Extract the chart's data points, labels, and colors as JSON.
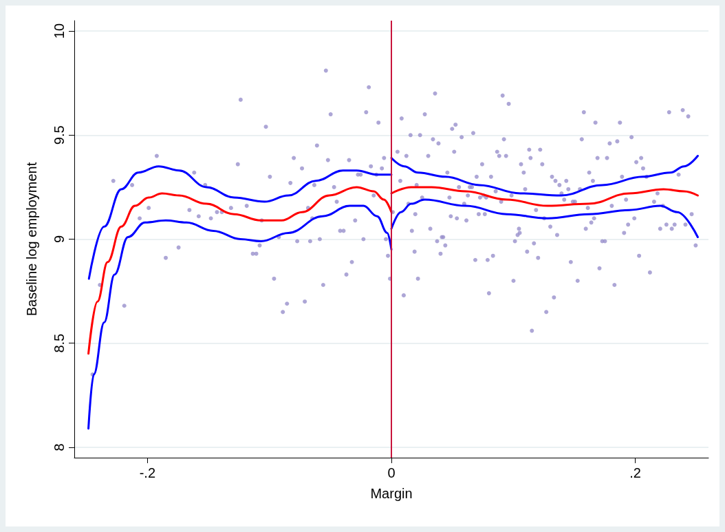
{
  "chart_data": {
    "type": "scatter",
    "xlabel": "Margin",
    "ylabel": "Baseline log employment",
    "xlim": [
      -0.26,
      0.26
    ],
    "ylim": [
      7.95,
      10.05
    ],
    "xticks": [
      {
        "value": -0.2,
        "label": "-.2"
      },
      0,
      {
        "value": 0.2,
        "label": ".2"
      }
    ],
    "yticks": [
      8,
      8.5,
      9,
      9.5,
      10
    ],
    "grid": "y",
    "ref_lines": [
      {
        "axis": "x",
        "value": 0,
        "color": "#c8143c"
      }
    ],
    "series": [
      {
        "marker": "circle",
        "color": "#9890cc",
        "x": [
          -0.1924,
          -0.228,
          -0.2126,
          -0.1617,
          -0.1527,
          -0.199,
          -0.2064,
          -0.1656,
          -0.158,
          -0.148,
          -0.143,
          -0.139,
          -0.1315,
          -0.185,
          -0.1745,
          -0.239,
          -0.219,
          -0.245,
          -0.0537,
          -0.0185,
          -0.1236,
          -0.0498,
          -0.0207,
          -0.0106,
          -0.1029,
          -0.061,
          -0.1259,
          -0.08,
          -0.052,
          -0.0347,
          -0.006,
          -0.0733,
          -0.0168,
          -0.0078,
          -0.0996,
          -0.0274,
          -0.0252,
          -0.0123,
          -0.0828,
          -0.0632,
          -0.047,
          -0.0145,
          -0.1186,
          -0.0448,
          -0.0683,
          -0.1063,
          -0.0649,
          -0.0297,
          -0.042,
          -0.0392,
          -0.0923,
          -0.108,
          -0.0772,
          -0.0666,
          -0.0587,
          -0.0229,
          -0.0045,
          -0.1136,
          -0.1108,
          -0.0028,
          -0.0324,
          -0.0962,
          -0.0369,
          -0.0011,
          -0.0559,
          -0.0856,
          -0.071,
          -0.089,
          0.0358,
          0.0912,
          0.0962,
          0.0084,
          0.0274,
          0.0526,
          0.0498,
          0.0157,
          0.0235,
          0.0576,
          0.0671,
          0.0923,
          0.0341,
          0.0386,
          0.005,
          0.0123,
          0.0302,
          0.0515,
          0.0867,
          0.0884,
          0.094,
          0.113,
          0.122,
          0.1141,
          0.0744,
          0.1063,
          0.1237,
          0.1085,
          0.0459,
          0.0699,
          0.0817,
          0.0073,
          0.0207,
          0.0554,
          0.0643,
          0.066,
          0.1097,
          0.0855,
          0.0627,
          0.0252,
          0.0476,
          0.0727,
          0.0755,
          0.0777,
          0.0985,
          0.09,
          0.0597,
          0.014,
          0.0011,
          0.1186,
          0.0196,
          0.0716,
          0.0766,
          0.0487,
          0.0537,
          0.0615,
          0.1253,
          0.0168,
          0.0319,
          0.1046,
          0.1035,
          0.1052,
          0.0414,
          0.0425,
          0.1013,
          0.0375,
          0.0442,
          0.1169,
          0.019,
          0.0403,
          0.1113,
          0.1203,
          0.0688,
          0.0789,
          0.0833,
          0.0218,
          0.1001,
          0.0101,
          0.08,
          0.127,
          0.1152,
          0.1578,
          0.2277,
          0.2389,
          0.2434,
          0.1673,
          0.1874,
          0.1561,
          0.1969,
          0.179,
          0.1852,
          0.169,
          0.1768,
          0.2008,
          0.2048,
          0.2064,
          0.1622,
          0.1891,
          0.2092,
          0.1317,
          0.1345,
          0.1378,
          0.1434,
          0.1652,
          0.2355,
          0.1451,
          0.1546,
          0.1395,
          0.2182,
          0.1417,
          0.1488,
          0.1505,
          0.1924,
          0.2154,
          0.1611,
          0.1807,
          0.2227,
          0.2462,
          0.1662,
          0.1992,
          0.1639,
          0.1941,
          0.2411,
          0.2255,
          0.2322,
          0.2204,
          0.2299,
          0.1594,
          0.1303,
          0.1359,
          0.1908,
          0.1729,
          0.1751,
          0.2495,
          0.2031,
          0.1471,
          0.1706,
          0.212,
          0.1527,
          0.1829,
          0.1333
        ],
        "values": [
          9.4,
          9.28,
          9.26,
          9.32,
          9.26,
          9.15,
          9.1,
          9.14,
          9.11,
          9.1,
          9.13,
          9.13,
          9.15,
          8.91,
          8.96,
          8.78,
          8.68,
          8.35,
          9.81,
          9.73,
          9.67,
          9.6,
          9.61,
          9.56,
          9.54,
          9.45,
          9.36,
          9.39,
          9.38,
          9.38,
          9.39,
          9.34,
          9.35,
          9.34,
          9.3,
          9.31,
          9.31,
          9.31,
          9.27,
          9.26,
          9.25,
          9.21,
          9.16,
          9.18,
          9.15,
          9.09,
          9.1,
          9.09,
          9.04,
          9.04,
          9.01,
          8.97,
          8.99,
          8.99,
          9,
          9,
          9,
          8.93,
          8.93,
          8.92,
          8.89,
          8.81,
          8.83,
          8.81,
          8.78,
          8.69,
          8.7,
          8.65,
          9.7,
          9.69,
          9.65,
          9.58,
          9.6,
          9.55,
          9.53,
          9.5,
          9.5,
          9.49,
          9.51,
          9.48,
          9.48,
          9.46,
          9.42,
          9.4,
          9.4,
          9.42,
          9.42,
          9.4,
          9.4,
          9.43,
          9.43,
          9.39,
          9.36,
          9.36,
          9.36,
          9.32,
          9.32,
          9.3,
          9.3,
          9.28,
          9.26,
          9.25,
          9.25,
          9.25,
          9.24,
          9.23,
          9.21,
          9.2,
          9.2,
          9.2,
          9.21,
          9.2,
          9.21,
          9.18,
          9.17,
          9.17,
          9.13,
          9.14,
          9.12,
          9.12,
          9.12,
          9.11,
          9.1,
          9.09,
          9.1,
          9.04,
          9.05,
          9.05,
          9.02,
          9.03,
          9.01,
          9.01,
          8.99,
          8.99,
          8.97,
          8.98,
          8.94,
          8.93,
          8.94,
          8.91,
          8.9,
          8.9,
          8.92,
          8.81,
          8.8,
          8.73,
          8.74,
          8.65,
          8.56,
          9.61,
          9.61,
          9.62,
          9.59,
          9.56,
          9.56,
          9.48,
          9.49,
          9.46,
          9.47,
          9.39,
          9.39,
          9.37,
          9.39,
          9.34,
          9.32,
          9.3,
          9.3,
          9.3,
          9.28,
          9.26,
          9.28,
          9.28,
          9.31,
          9.24,
          9.24,
          9.22,
          9.22,
          9.19,
          9.18,
          9.18,
          9.19,
          9.18,
          9.15,
          9.16,
          9.16,
          9.12,
          9.1,
          9.1,
          9.08,
          9.07,
          9.07,
          9.07,
          9.07,
          9.05,
          9.05,
          9.05,
          9.06,
          9.02,
          9.03,
          8.99,
          8.99,
          8.97,
          8.92,
          8.89,
          8.86,
          8.84,
          8.8,
          8.78,
          8.72
        ]
      },
      {
        "type": "line",
        "marker": "none",
        "color": "#ff0000",
        "x": [
          -0.2484,
          -0.241,
          -0.2327,
          -0.2215,
          -0.2103,
          -0.199,
          -0.188,
          -0.174,
          -0.1516,
          -0.129,
          -0.107,
          -0.09,
          -0.0733,
          -0.051,
          -0.0285,
          -0.0145,
          -0.0062,
          0
        ],
        "values": [
          8.45,
          8.7,
          8.89,
          9.06,
          9.16,
          9.2,
          9.22,
          9.21,
          9.17,
          9.12,
          9.09,
          9.09,
          9.13,
          9.21,
          9.25,
          9.23,
          9.19,
          9.13
        ]
      },
      {
        "type": "line",
        "marker": "none",
        "color": "#0000ff",
        "x": [
          -0.248,
          -0.2355,
          -0.2215,
          -0.2075,
          -0.1908,
          -0.174,
          -0.1516,
          -0.129,
          -0.104,
          -0.0845,
          -0.062,
          -0.0397,
          -0.0285,
          -0.0117,
          0
        ],
        "values": [
          8.81,
          9.06,
          9.24,
          9.32,
          9.35,
          9.33,
          9.25,
          9.2,
          9.18,
          9.21,
          9.28,
          9.33,
          9.33,
          9.31,
          9.31
        ]
      },
      {
        "type": "line",
        "marker": "none",
        "color": "#0000ff",
        "x": [
          -0.2484,
          -0.244,
          -0.2355,
          -0.227,
          -0.216,
          -0.202,
          -0.185,
          -0.168,
          -0.146,
          -0.1236,
          -0.107,
          -0.0845,
          -0.0565,
          -0.0341,
          -0.0229,
          -0.0117,
          -0.0034,
          0
        ],
        "values": [
          8.09,
          8.35,
          8.6,
          8.83,
          9.01,
          9.08,
          9.09,
          9.08,
          9.04,
          9,
          8.99,
          9.03,
          9.11,
          9.16,
          9.16,
          9.11,
          9.03,
          8.95
        ]
      },
      {
        "type": "line",
        "marker": "none",
        "color": "#ff0000",
        "x": [
          0,
          0.0162,
          0.033,
          0.061,
          0.0945,
          0.128,
          0.1617,
          0.1952,
          0.2232,
          0.24,
          0.2512
        ],
        "values": [
          9.22,
          9.25,
          9.25,
          9.23,
          9.19,
          9.16,
          9.17,
          9.22,
          9.24,
          9.23,
          9.21
        ]
      },
      {
        "type": "line",
        "marker": "none",
        "color": "#0000ff",
        "x": [
          0,
          0.0106,
          0.0218,
          0.0442,
          0.0722,
          0.1057,
          0.1393,
          0.1729,
          0.2064,
          0.2288,
          0.24,
          0.2512
        ],
        "values": [
          9.39,
          9.35,
          9.32,
          9.3,
          9.26,
          9.22,
          9.21,
          9.26,
          9.3,
          9.32,
          9.35,
          9.4
        ]
      },
      {
        "type": "line",
        "marker": "none",
        "color": "#0000ff",
        "x": [
          0,
          0.0078,
          0.0162,
          0.0274,
          0.061,
          0.0945,
          0.128,
          0.1617,
          0.1952,
          0.2204,
          0.2344,
          0.2512
        ],
        "values": [
          9.05,
          9.13,
          9.17,
          9.19,
          9.16,
          9.12,
          9.1,
          9.12,
          9.14,
          9.16,
          9.13,
          9.01
        ]
      }
    ]
  }
}
